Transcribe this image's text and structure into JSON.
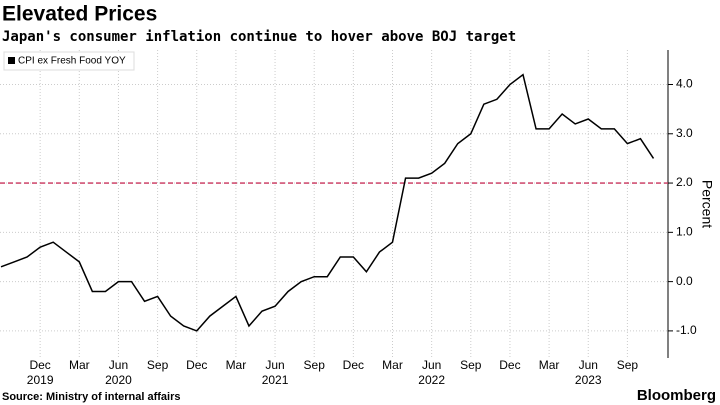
{
  "chart_data": {
    "type": "line",
    "title": "Elevated Prices",
    "subtitle": "Japan's consumer inflation continue to hover above BOJ target",
    "source": "Source: Ministry of internal affairs",
    "brand": "Bloomberg",
    "y_label": "Percent",
    "x": [
      "2019-09",
      "2019-10",
      "2019-11",
      "2019-12",
      "2020-01",
      "2020-02",
      "2020-03",
      "2020-04",
      "2020-05",
      "2020-06",
      "2020-07",
      "2020-08",
      "2020-09",
      "2020-10",
      "2020-11",
      "2020-12",
      "2021-01",
      "2021-02",
      "2021-03",
      "2021-04",
      "2021-05",
      "2021-06",
      "2021-07",
      "2021-08",
      "2021-09",
      "2021-10",
      "2021-11",
      "2021-12",
      "2022-01",
      "2022-02",
      "2022-03",
      "2022-04",
      "2022-05",
      "2022-06",
      "2022-07",
      "2022-08",
      "2022-09",
      "2022-10",
      "2022-11",
      "2022-12",
      "2023-01",
      "2023-02",
      "2023-03",
      "2023-04",
      "2023-05",
      "2023-06",
      "2023-07",
      "2023-08",
      "2023-09",
      "2023-10",
      "2023-11"
    ],
    "series": [
      {
        "name": "CPI ex Fresh Food YOY",
        "color": "#000000",
        "values": [
          0.3,
          0.4,
          0.5,
          0.7,
          0.8,
          0.6,
          0.4,
          -0.2,
          -0.2,
          0.0,
          0.0,
          -0.4,
          -0.3,
          -0.7,
          -0.9,
          -1.0,
          -0.7,
          -0.5,
          -0.3,
          -0.9,
          -0.6,
          -0.5,
          -0.2,
          0.0,
          0.1,
          0.1,
          0.5,
          0.5,
          0.2,
          0.6,
          0.8,
          2.1,
          2.1,
          2.2,
          2.4,
          2.8,
          3.0,
          3.6,
          3.7,
          4.0,
          4.2,
          3.1,
          3.1,
          3.4,
          3.2,
          3.3,
          3.1,
          3.1,
          2.8,
          2.9,
          2.5
        ]
      }
    ],
    "target": 2.0,
    "target_color": "#c8325a",
    "ylim": [
      -1.55,
      4.7
    ],
    "yticks": [
      {
        "value": -1,
        "label": "-1.0"
      },
      {
        "value": 0,
        "label": "0.0"
      },
      {
        "value": 1,
        "label": "1.0"
      },
      {
        "value": 2,
        "label": "2.0"
      },
      {
        "value": 3,
        "label": "3.0"
      },
      {
        "value": 4,
        "label": "4.0"
      }
    ],
    "xticks": [
      {
        "value": "2019-12",
        "label": "Dec"
      },
      {
        "value": "2020-03",
        "label": "Mar"
      },
      {
        "value": "2020-06",
        "label": "Jun"
      },
      {
        "value": "2020-09",
        "label": "Sep"
      },
      {
        "value": "2020-12",
        "label": "Dec"
      },
      {
        "value": "2021-03",
        "label": "Mar"
      },
      {
        "value": "2021-06",
        "label": "Jun"
      },
      {
        "value": "2021-09",
        "label": "Sep"
      },
      {
        "value": "2021-12",
        "label": "Dec"
      },
      {
        "value": "2022-03",
        "label": "Mar"
      },
      {
        "value": "2022-06",
        "label": "Jun"
      },
      {
        "value": "2022-09",
        "label": "Sep"
      },
      {
        "value": "2022-12",
        "label": "Dec"
      },
      {
        "value": "2023-03",
        "label": "Mar"
      },
      {
        "value": "2023-06",
        "label": "Jun"
      },
      {
        "value": "2023-09",
        "label": "Sep"
      }
    ],
    "xyears": [
      {
        "value": "2019-12",
        "label": "2019"
      },
      {
        "value": "2020-06",
        "label": "2020"
      },
      {
        "value": "2021-06",
        "label": "2021"
      },
      {
        "value": "2022-06",
        "label": "2022"
      },
      {
        "value": "2023-06",
        "label": "2023"
      }
    ],
    "grid": true,
    "legend": "top-left"
  }
}
